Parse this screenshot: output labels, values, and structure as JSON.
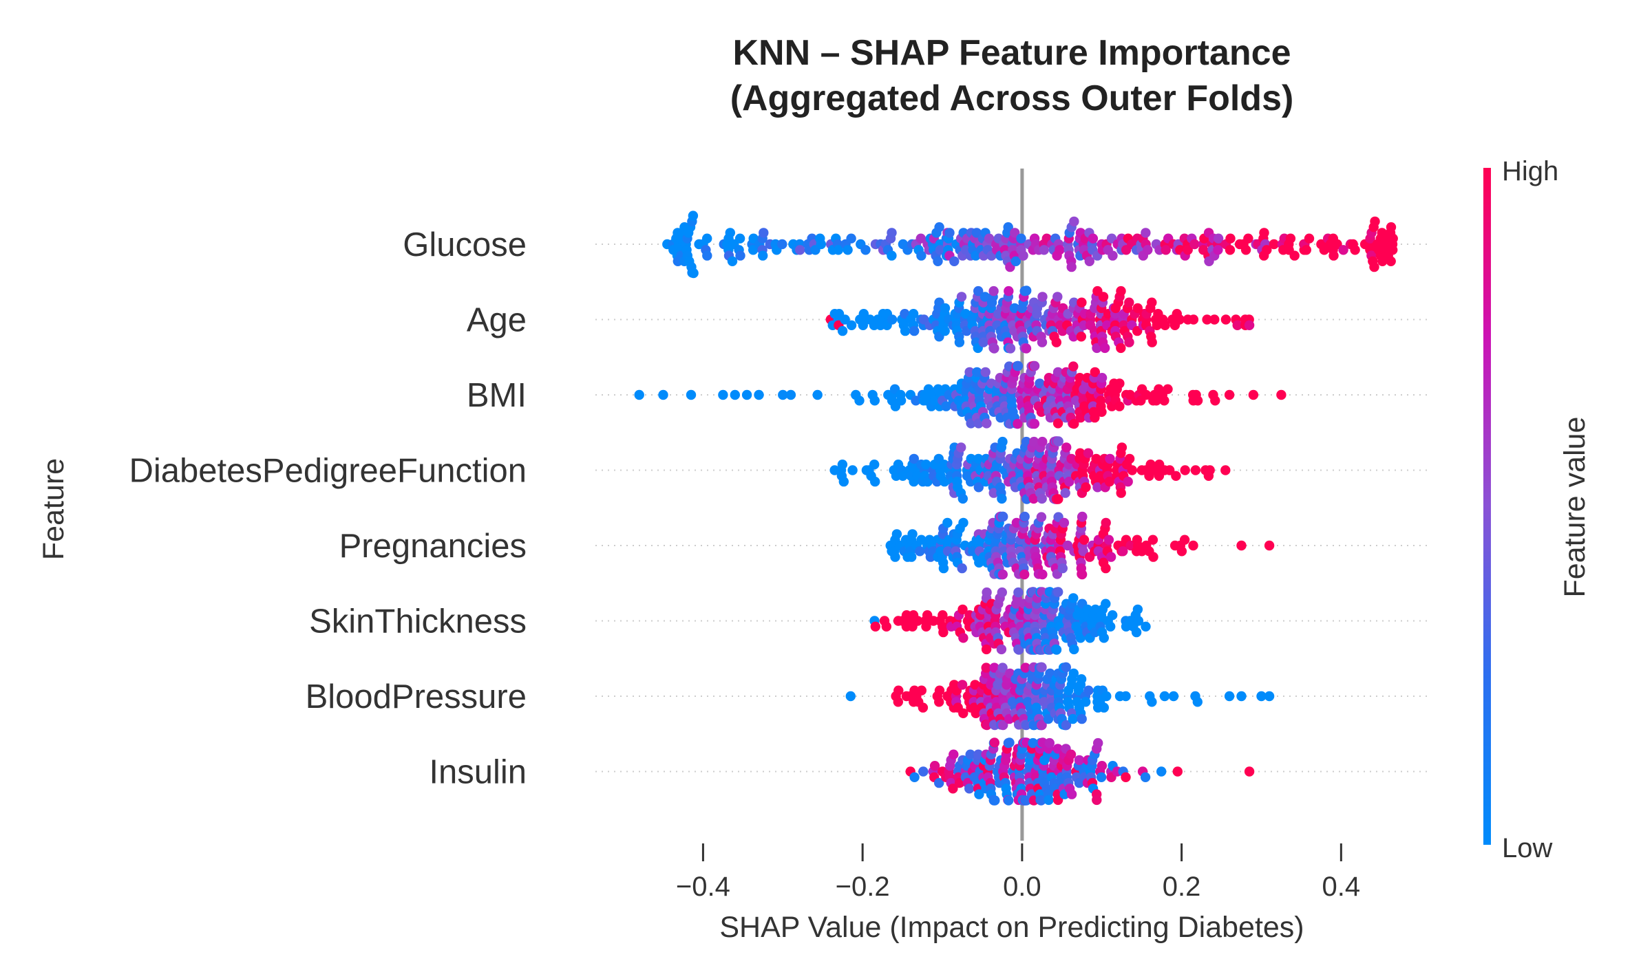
{
  "chart_data": {
    "type": "scatter",
    "subtype": "shap-beeswarm",
    "title": [
      "KNN – SHAP Feature Importance",
      "(Aggregated Across Outer Folds)"
    ],
    "xlabel": "SHAP Value (Impact on Predicting Diabetes)",
    "ylabel": "Feature",
    "xlim": [
      -0.535,
      0.505
    ],
    "xticks": [
      -0.4,
      -0.2,
      0.0,
      0.2,
      0.4
    ],
    "xtick_labels": [
      "−0.4",
      "−0.2",
      "0.0",
      "0.2",
      "0.4"
    ],
    "zero_line": true,
    "grid": false,
    "colorbar": {
      "label": "Feature value",
      "high_label": "High",
      "low_label": "Low",
      "low_color": "#008bfb",
      "high_color": "#ff0052"
    },
    "features": [
      {
        "name": "Glucose",
        "min": -0.44,
        "max": 0.465,
        "count": 300,
        "spread": 0.3,
        "low_dir": -1,
        "outliers": [
          {
            "x": -0.445,
            "v": 0.0
          },
          {
            "x": -0.405,
            "v": 0.0
          },
          {
            "x": -0.395,
            "v": 0.0
          },
          {
            "x": -0.37,
            "v": 0.0
          },
          {
            "x": -0.355,
            "v": 0.05
          },
          {
            "x": 0.36,
            "v": 1.0
          },
          {
            "x": 0.375,
            "v": 1.0
          },
          {
            "x": 0.395,
            "v": 1.0
          },
          {
            "x": 0.415,
            "v": 1.0
          },
          {
            "x": 0.43,
            "v": 1.0
          },
          {
            "x": 0.465,
            "v": 1.0
          }
        ]
      },
      {
        "name": "Age",
        "min": -0.24,
        "max": 0.29,
        "count": 260,
        "spread": 0.11,
        "low_dir": -1,
        "outliers": [
          {
            "x": -0.24,
            "v": 1.0
          },
          {
            "x": -0.23,
            "v": 1.0
          },
          {
            "x": 0.27,
            "v": 0.9
          },
          {
            "x": 0.285,
            "v": 0.85
          }
        ]
      },
      {
        "name": "BMI",
        "min": -0.48,
        "max": 0.325,
        "count": 240,
        "spread": 0.09,
        "low_dir": -1,
        "outliers": [
          {
            "x": -0.48,
            "v": 0.0
          },
          {
            "x": -0.45,
            "v": 0.0
          },
          {
            "x": -0.415,
            "v": 0.0
          },
          {
            "x": -0.375,
            "v": 0.0
          },
          {
            "x": -0.36,
            "v": 0.0
          },
          {
            "x": -0.345,
            "v": 0.0
          },
          {
            "x": -0.33,
            "v": 0.0
          },
          {
            "x": -0.3,
            "v": 0.02
          },
          {
            "x": -0.29,
            "v": 0.02
          },
          {
            "x": 0.26,
            "v": 1.0
          },
          {
            "x": 0.29,
            "v": 1.0
          },
          {
            "x": 0.325,
            "v": 1.0
          }
        ]
      },
      {
        "name": "DiabetesPedigreeFunction",
        "min": -0.235,
        "max": 0.255,
        "count": 240,
        "spread": 0.1,
        "low_dir": -1,
        "outliers": [
          {
            "x": -0.235,
            "v": 0.0
          },
          {
            "x": -0.195,
            "v": 0.0
          },
          {
            "x": 0.23,
            "v": 1.0
          },
          {
            "x": 0.255,
            "v": 1.0
          }
        ]
      },
      {
        "name": "Pregnancies",
        "min": -0.165,
        "max": 0.31,
        "count": 220,
        "spread": 0.09,
        "low_dir": -1,
        "outliers": [
          {
            "x": -0.165,
            "v": 0.0
          },
          {
            "x": -0.14,
            "v": 0.05
          },
          {
            "x": 0.275,
            "v": 1.0
          },
          {
            "x": 0.31,
            "v": 1.0
          }
        ]
      },
      {
        "name": "SkinThickness",
        "min": -0.185,
        "max": 0.155,
        "count": 200,
        "spread": 0.065,
        "low_dir": 1,
        "outliers": [
          {
            "x": -0.185,
            "v": 0.0
          },
          {
            "x": -0.145,
            "v": 1.0
          },
          {
            "x": 0.13,
            "v": 0.05
          },
          {
            "x": 0.145,
            "v": 0.0
          },
          {
            "x": 0.155,
            "v": 0.0
          }
        ]
      },
      {
        "name": "BloodPressure",
        "min": -0.215,
        "max": 0.31,
        "count": 200,
        "spread": 0.065,
        "low_dir": 1,
        "outliers": [
          {
            "x": -0.215,
            "v": 0.0
          },
          {
            "x": -0.145,
            "v": 1.0
          },
          {
            "x": -0.135,
            "v": 1.0
          },
          {
            "x": 0.13,
            "v": 0.0
          },
          {
            "x": 0.16,
            "v": 0.0
          },
          {
            "x": 0.19,
            "v": 0.0
          },
          {
            "x": 0.22,
            "v": 0.0
          },
          {
            "x": 0.26,
            "v": 0.0
          },
          {
            "x": 0.275,
            "v": 0.0
          },
          {
            "x": 0.3,
            "v": 0.0
          },
          {
            "x": 0.31,
            "v": 0.0
          }
        ]
      },
      {
        "name": "Insulin",
        "min": -0.14,
        "max": 0.285,
        "count": 200,
        "spread": 0.06,
        "low_dir": 0,
        "outliers": [
          {
            "x": -0.14,
            "v": 1.0
          },
          {
            "x": 0.13,
            "v": 1.0
          },
          {
            "x": 0.195,
            "v": 1.0
          },
          {
            "x": 0.285,
            "v": 1.0
          }
        ]
      }
    ]
  }
}
